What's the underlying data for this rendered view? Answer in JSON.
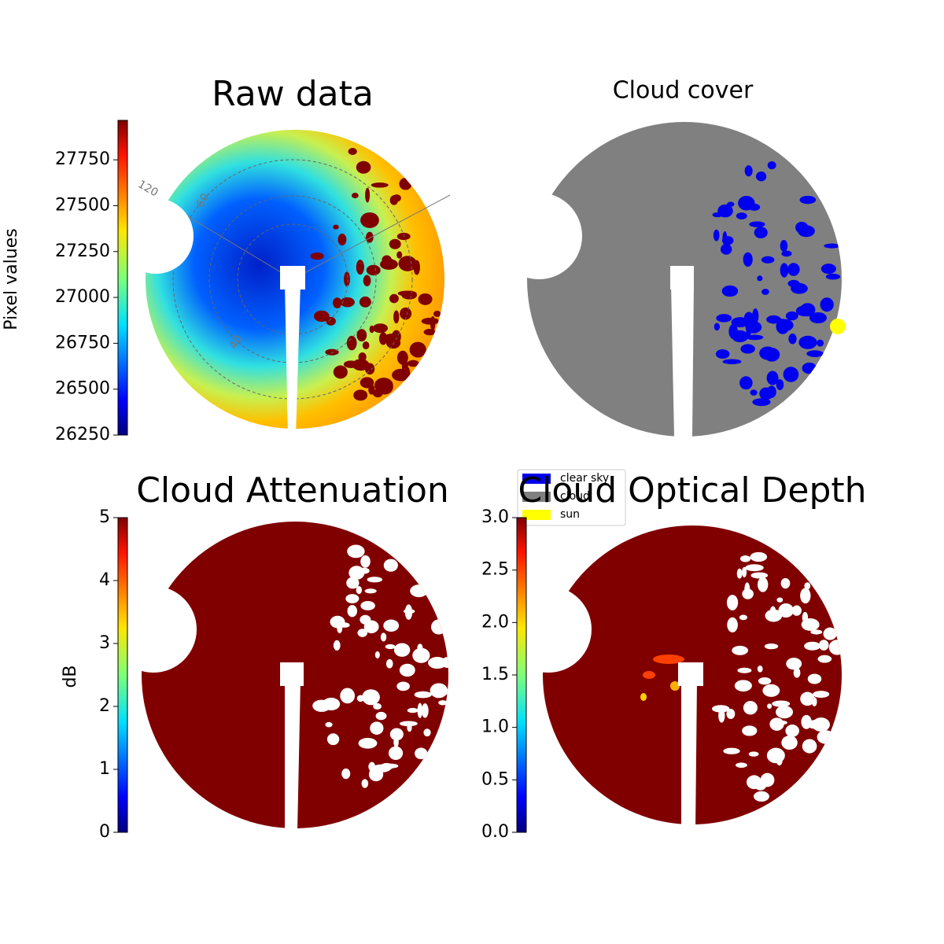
{
  "chart_data": [
    {
      "type": "image",
      "title": "Raw data",
      "colormap": "jet",
      "ylabel": "Pixel values",
      "ylim": [
        26250,
        27965
      ],
      "yticks": [
        26250,
        26500,
        26750,
        27000,
        27250,
        27500,
        27750
      ],
      "annotations": [
        "120",
        "60",
        "40"
      ]
    },
    {
      "type": "image",
      "title": "Cloud cover",
      "legend": [
        {
          "name": "clear sky",
          "color": "#0000ee"
        },
        {
          "name": "cloud",
          "color": "#808080"
        },
        {
          "name": "sun",
          "color": "#ffff00"
        }
      ]
    },
    {
      "type": "image",
      "title": "Cloud Attenuation",
      "colormap": "jet",
      "ylabel": "dB",
      "ylim": [
        0,
        5
      ],
      "yticks": [
        0,
        1,
        2,
        3,
        4,
        5
      ]
    },
    {
      "type": "image",
      "title": "Cloud Optical Depth",
      "colormap": "jet",
      "ylim": [
        0,
        3
      ],
      "yticks": [
        {
          "value": 0,
          "label": "0.0"
        },
        0.5,
        {
          "value": 1,
          "label": "1.0"
        },
        1.5,
        {
          "value": 2,
          "label": "2.0"
        },
        2.5,
        {
          "value": 3,
          "label": "3.0"
        }
      ]
    }
  ]
}
